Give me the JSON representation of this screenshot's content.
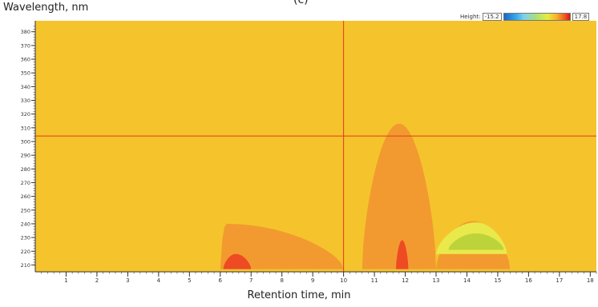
{
  "caption": "(c)",
  "chart_data": {
    "type": "heatmap",
    "title": "",
    "xlabel": "Retention time, min",
    "ylabel": "Wavelength, nm",
    "xlim": [
      0,
      18.2
    ],
    "ylim": [
      205,
      388
    ],
    "xticks": [
      1,
      2,
      3,
      4,
      5,
      6,
      7,
      8,
      9,
      10,
      11,
      12,
      13,
      14,
      15,
      16,
      17,
      18
    ],
    "yticks": [
      210,
      220,
      230,
      240,
      250,
      260,
      270,
      280,
      290,
      300,
      310,
      320,
      330,
      340,
      350,
      360,
      370,
      380
    ],
    "legend": {
      "label": "Height:",
      "min": "-15.2",
      "max": "17.8",
      "position": "top-right"
    },
    "cursor": {
      "x": 10.0,
      "y": 304
    },
    "background_color": "#f5c42c",
    "level_colors": {
      "orange": "#f29a30",
      "red": "#ee4a23",
      "light": "#e9e94c",
      "green": "#bcd43a"
    },
    "regions": [
      {
        "level": "orange",
        "x_start": 6.0,
        "x_end": 10.0,
        "peak_x": 6.2,
        "top_y": 240,
        "min_y": 207
      },
      {
        "level": "red",
        "x_start": 6.1,
        "x_end": 7.0,
        "peak_x": 6.5,
        "top_y": 218,
        "min_y": 207
      },
      {
        "level": "orange",
        "x_start": 10.6,
        "x_end": 13.0,
        "peak_x": 11.8,
        "top_y": 313,
        "min_y": 207
      },
      {
        "level": "red",
        "x_start": 11.7,
        "x_end": 12.1,
        "peak_x": 11.9,
        "top_y": 228,
        "min_y": 207
      },
      {
        "level": "orange",
        "x_start": 13.0,
        "x_end": 15.4,
        "peak_x": 14.2,
        "top_y": 242,
        "min_y": 207
      },
      {
        "level": "light",
        "x_start": 13.0,
        "x_end": 15.3,
        "peak_x": 14.3,
        "top_y": 241,
        "min_y": 218
      },
      {
        "level": "green",
        "x_start": 13.4,
        "x_end": 15.2,
        "peak_x": 14.3,
        "top_y": 233,
        "min_y": 221
      }
    ]
  }
}
